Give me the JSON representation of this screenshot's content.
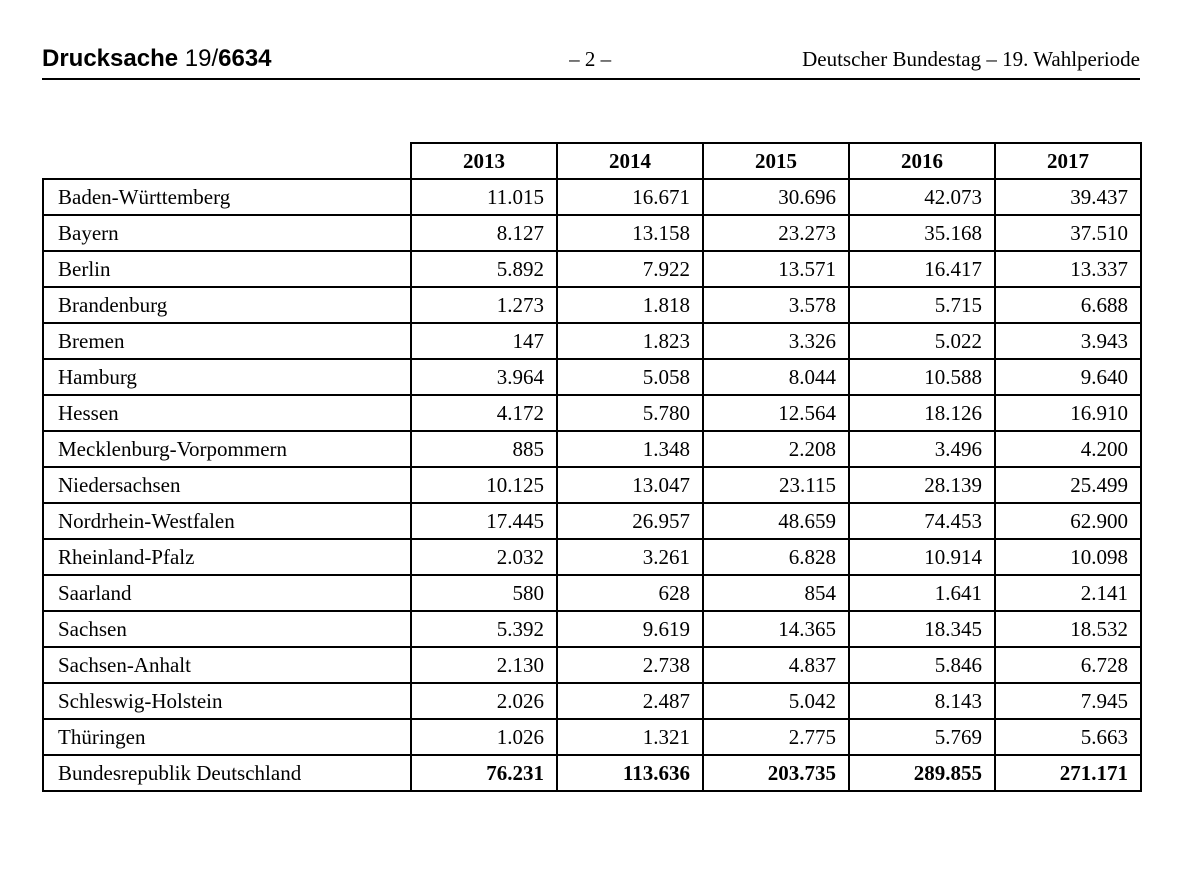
{
  "header": {
    "doc_label": "Drucksache",
    "doc_number_prefix": "19/",
    "doc_number_bold": "6634",
    "page_number": "– 2 –",
    "journal": "Deutscher Bundestag – 19. Wahlperiode"
  },
  "table": {
    "columns": [
      "2013",
      "2014",
      "2015",
      "2016",
      "2017"
    ],
    "rows": [
      {
        "name": "Baden-Württemberg",
        "values": [
          "11.015",
          "16.671",
          "30.696",
          "42.073",
          "39.437"
        ]
      },
      {
        "name": "Bayern",
        "values": [
          "8.127",
          "13.158",
          "23.273",
          "35.168",
          "37.510"
        ]
      },
      {
        "name": "Berlin",
        "values": [
          "5.892",
          "7.922",
          "13.571",
          "16.417",
          "13.337"
        ]
      },
      {
        "name": "Brandenburg",
        "values": [
          "1.273",
          "1.818",
          "3.578",
          "5.715",
          "6.688"
        ]
      },
      {
        "name": "Bremen",
        "values": [
          "147",
          "1.823",
          "3.326",
          "5.022",
          "3.943"
        ]
      },
      {
        "name": "Hamburg",
        "values": [
          "3.964",
          "5.058",
          "8.044",
          "10.588",
          "9.640"
        ]
      },
      {
        "name": "Hessen",
        "values": [
          "4.172",
          "5.780",
          "12.564",
          "18.126",
          "16.910"
        ]
      },
      {
        "name": "Mecklenburg-Vorpommern",
        "values": [
          "885",
          "1.348",
          "2.208",
          "3.496",
          "4.200"
        ]
      },
      {
        "name": "Niedersachsen",
        "values": [
          "10.125",
          "13.047",
          "23.115",
          "28.139",
          "25.499"
        ]
      },
      {
        "name": "Nordrhein-Westfalen",
        "values": [
          "17.445",
          "26.957",
          "48.659",
          "74.453",
          "62.900"
        ]
      },
      {
        "name": "Rheinland-Pfalz",
        "values": [
          "2.032",
          "3.261",
          "6.828",
          "10.914",
          "10.098"
        ]
      },
      {
        "name": "Saarland",
        "values": [
          "580",
          "628",
          "854",
          "1.641",
          "2.141"
        ]
      },
      {
        "name": "Sachsen",
        "values": [
          "5.392",
          "9.619",
          "14.365",
          "18.345",
          "18.532"
        ]
      },
      {
        "name": "Sachsen-Anhalt",
        "values": [
          "2.130",
          "2.738",
          "4.837",
          "5.846",
          "6.728"
        ]
      },
      {
        "name": "Schleswig-Holstein",
        "values": [
          "2.026",
          "2.487",
          "5.042",
          "8.143",
          "7.945"
        ]
      },
      {
        "name": "Thüringen",
        "values": [
          "1.026",
          "1.321",
          "2.775",
          "5.769",
          "5.663"
        ]
      }
    ],
    "total_row": {
      "name": "Bundesrepublik Deutschland",
      "values": [
        "76.231",
        "113.636",
        "203.735",
        "289.855",
        "271.171"
      ]
    }
  }
}
